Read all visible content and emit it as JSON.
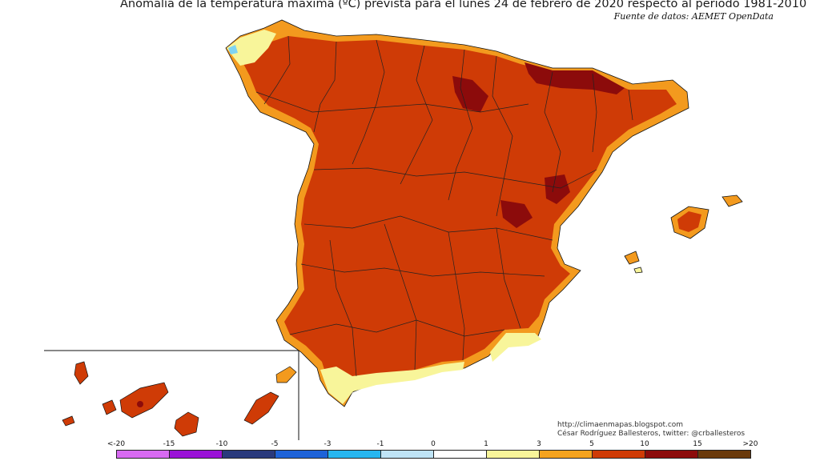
{
  "header": {
    "title": "Anomalía de la temperatura máxima (ºC) prevista para el lunes 24 de febrero de 2020 respecto al periodo 1981-2010",
    "source": "Fuente de datos: AEMET OpenData"
  },
  "credit": {
    "line1": "http://climaenmapas.blogspot.com",
    "line2": "César Rodríguez Ballesteros, twitter: @crballesteros"
  },
  "map": {
    "colors": {
      "anomaly_5_10": "#cf3b06",
      "anomaly_3_5": "#f39a1e",
      "anomaly_1_3": "#f8f59a",
      "anomaly_10_15": "#8c0b0b",
      "anomaly_0_1": "#ffffff",
      "anomaly_minus1_0": "#7fd3f2"
    }
  },
  "legend": {
    "labels": [
      "<-20",
      "-15",
      "-10",
      "-5",
      "-3",
      "-1",
      "0",
      "1",
      "3",
      "5",
      "10",
      "15",
      ">20"
    ],
    "colors": [
      "#d86af2",
      "#9a12d6",
      "#2a3a7c",
      "#1e63d8",
      "#27b6ef",
      "#bfe4f6",
      "#ffffff",
      "#f8f59a",
      "#f5a31e",
      "#cf3b06",
      "#8c0b0b",
      "#6a3a0c"
    ]
  }
}
